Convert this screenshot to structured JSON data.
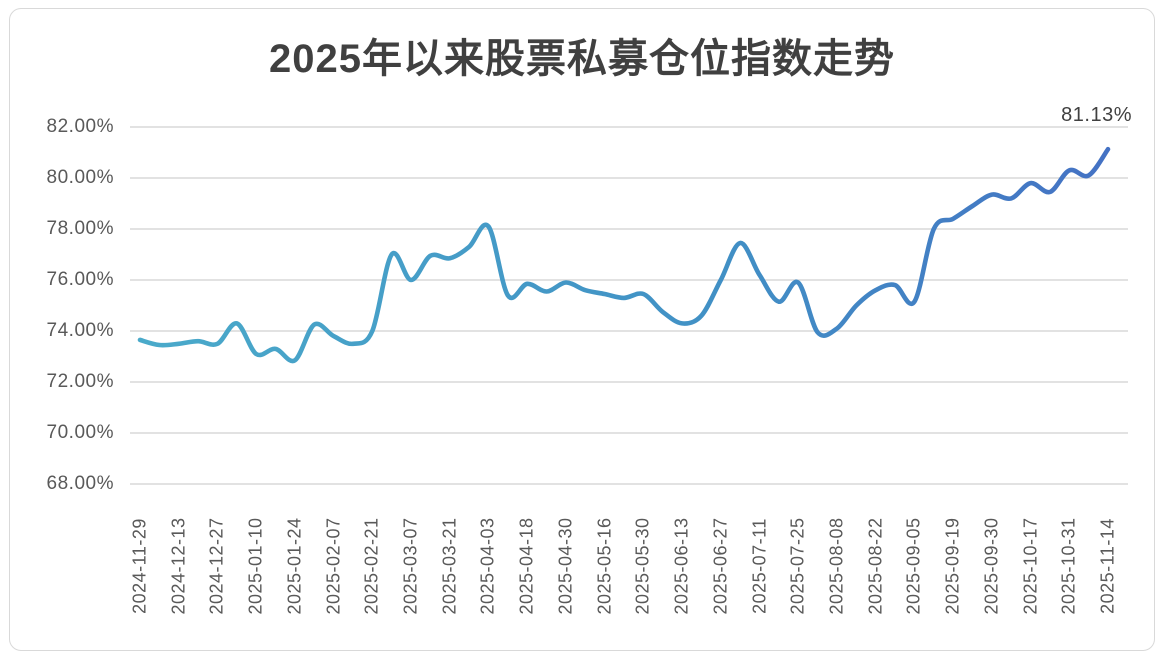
{
  "chart_data": {
    "type": "line",
    "title": "2025年以来股票私募仓位指数走势",
    "y_ticks": [
      "82.00%",
      "80.00%",
      "78.00%",
      "76.00%",
      "74.00%",
      "72.00%",
      "70.00%",
      "68.00%"
    ],
    "ylim": [
      68,
      82
    ],
    "y_unit": "%",
    "x_tick_labels": [
      "2024-11-29",
      "2024-12-13",
      "2024-12-27",
      "2025-01-10",
      "2025-01-24",
      "2025-02-07",
      "2025-02-21",
      "2025-03-07",
      "2025-03-21",
      "2025-04-03",
      "2025-04-18",
      "2025-04-30",
      "2025-05-16",
      "2025-05-30",
      "2025-06-13",
      "2025-06-27",
      "2025-07-11",
      "2025-07-25",
      "2025-08-08",
      "2025-08-22",
      "2025-09-05",
      "2025-09-19",
      "2025-09-30",
      "2025-10-17",
      "2025-10-31",
      "2025-11-14"
    ],
    "points_per_label": 2,
    "n_points": 51,
    "values": [
      73.65,
      73.45,
      73.5,
      73.6,
      73.5,
      74.3,
      73.1,
      73.3,
      72.85,
      74.25,
      73.8,
      73.5,
      74.0,
      77.0,
      76.0,
      76.95,
      76.85,
      77.3,
      78.1,
      75.4,
      75.85,
      75.55,
      75.9,
      75.6,
      75.45,
      75.3,
      75.45,
      74.75,
      74.3,
      74.6,
      76.0,
      77.45,
      76.2,
      75.15,
      75.9,
      73.95,
      74.1,
      75.0,
      75.6,
      75.8,
      75.15,
      78.0,
      78.4,
      78.9,
      79.35,
      79.2,
      79.8,
      79.45,
      80.3,
      80.1,
      81.13
    ],
    "last_point_label": "81.13%",
    "smooth": true,
    "grid": true,
    "legend": false,
    "colors": {
      "line_gradient_start": "#4aaaca",
      "line_gradient_mid": "#4190c5",
      "line_gradient_end": "#4472c4",
      "gridline": "#d9d9d9",
      "border": "#d9d9d9",
      "tick_text": "#595959",
      "title_text": "#404040",
      "data_label_text": "#404040"
    }
  }
}
